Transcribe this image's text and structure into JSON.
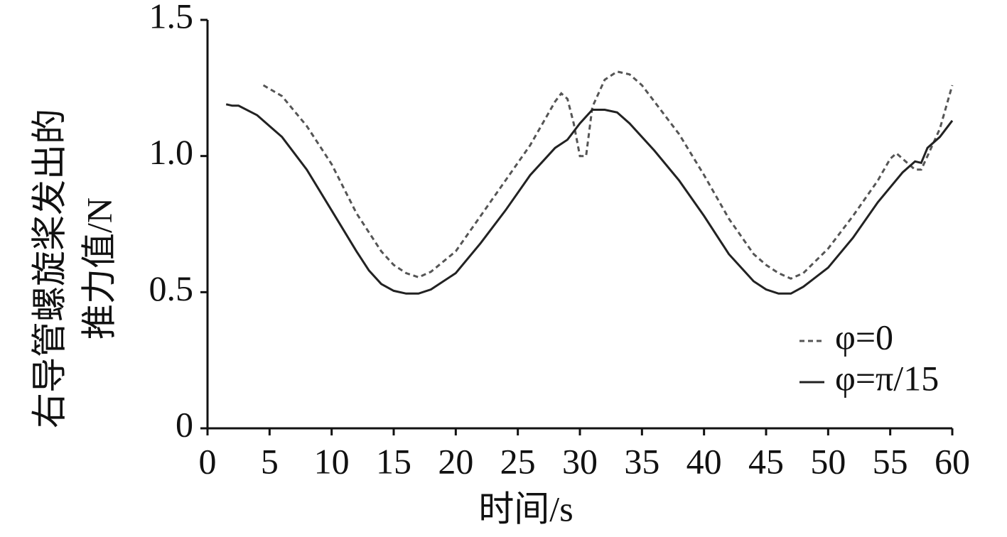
{
  "chart_data": {
    "type": "line",
    "ylabel": [
      "右导管螺旋桨发出的",
      "推力值/N"
    ],
    "xlabel": "时间/s",
    "xlim": [
      0,
      60
    ],
    "xticks": [
      0,
      5,
      10,
      15,
      20,
      25,
      30,
      35,
      40,
      45,
      50,
      55,
      60
    ],
    "ylim": [
      0,
      1.5
    ],
    "yticks": [
      0,
      0.5,
      {
        "value": 1.0,
        "label": "1.0"
      },
      1.5
    ],
    "grid": false,
    "legend": "right",
    "series": [
      {
        "name": "φ=0",
        "color": "#555555",
        "line_style": "dashed",
        "x": [
          4.5,
          6,
          8,
          10,
          12,
          14,
          15,
          16,
          17,
          18,
          20,
          22,
          24,
          26,
          27,
          28,
          28.5,
          29,
          29.5,
          30,
          30.5,
          31,
          32,
          33,
          34,
          35,
          36,
          38,
          40,
          42,
          44,
          45,
          46,
          47,
          48,
          50,
          52,
          54,
          55,
          55.5,
          56,
          57,
          57.5,
          58,
          59,
          60
        ],
        "values": [
          1.26,
          1.22,
          1.11,
          0.97,
          0.79,
          0.65,
          0.6,
          0.57,
          0.555,
          0.575,
          0.65,
          0.78,
          0.91,
          1.04,
          1.12,
          1.2,
          1.23,
          1.21,
          1.12,
          1.0,
          1.0,
          1.18,
          1.28,
          1.31,
          1.3,
          1.26,
          1.2,
          1.08,
          0.93,
          0.77,
          0.64,
          0.6,
          0.57,
          0.55,
          0.57,
          0.66,
          0.78,
          0.91,
          0.99,
          1.01,
          0.99,
          0.95,
          0.95,
          1.0,
          1.1,
          1.26
        ]
      },
      {
        "name": "φ=π/15",
        "color": "#222222",
        "line_style": "solid",
        "x": [
          1.5,
          2,
          2.5,
          4,
          6,
          8,
          10,
          12,
          13,
          14,
          15,
          16,
          17,
          18,
          20,
          22,
          24,
          26,
          28,
          29,
          30,
          31,
          32,
          33,
          34,
          36,
          38,
          40,
          42,
          44,
          45,
          46,
          47,
          48,
          50,
          52,
          54,
          56,
          57,
          57.5,
          58,
          59,
          60
        ],
        "values": [
          1.19,
          1.185,
          1.185,
          1.15,
          1.07,
          0.95,
          0.8,
          0.65,
          0.58,
          0.53,
          0.505,
          0.495,
          0.495,
          0.51,
          0.57,
          0.68,
          0.8,
          0.93,
          1.03,
          1.06,
          1.12,
          1.17,
          1.17,
          1.16,
          1.12,
          1.02,
          0.91,
          0.78,
          0.64,
          0.54,
          0.51,
          0.495,
          0.495,
          0.52,
          0.59,
          0.7,
          0.83,
          0.94,
          0.98,
          0.975,
          1.03,
          1.07,
          1.13
        ]
      }
    ]
  }
}
